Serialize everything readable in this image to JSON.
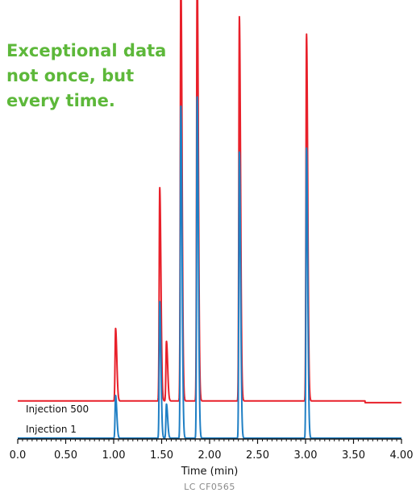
{
  "tagline": {
    "lines": [
      "Exceptional data",
      "not once, but",
      "every time."
    ],
    "color": "#5db83a"
  },
  "chart_data": {
    "type": "line",
    "title": "Exceptional data not once, but every time.",
    "xlabel": "Time (min)",
    "ylabel": "",
    "xlim": [
      0,
      4
    ],
    "x_ticks": [
      "0.0",
      "0.50",
      "1.00",
      "1.50",
      "2.00",
      "2.50",
      "3.00",
      "3.50",
      "4.00"
    ],
    "x_tick_values": [
      0,
      0.5,
      1.0,
      1.5,
      2.0,
      2.5,
      3.0,
      3.5,
      4.0
    ],
    "ylim": [
      0,
      100
    ],
    "grid": false,
    "footnote": "LC  CF0565",
    "series": [
      {
        "name": "Injection 500",
        "color": "#e8202a",
        "baseline": 4,
        "peaks": [
          {
            "t": 1.02,
            "height": 17
          },
          {
            "t": 1.48,
            "height": 50
          },
          {
            "t": 1.55,
            "height": 14
          },
          {
            "t": 1.7,
            "height": 100
          },
          {
            "t": 1.87,
            "height": 101
          },
          {
            "t": 2.31,
            "height": 90
          },
          {
            "t": 3.01,
            "height": 86
          }
        ]
      },
      {
        "name": "Injection 1",
        "color": "#1f7fc4",
        "baseline": 0,
        "peaks": [
          {
            "t": 1.02,
            "height": 10
          },
          {
            "t": 1.48,
            "height": 32
          },
          {
            "t": 1.55,
            "height": 8
          },
          {
            "t": 1.7,
            "height": 78
          },
          {
            "t": 1.87,
            "height": 80
          },
          {
            "t": 2.31,
            "height": 67
          },
          {
            "t": 3.01,
            "height": 68
          }
        ]
      }
    ]
  }
}
